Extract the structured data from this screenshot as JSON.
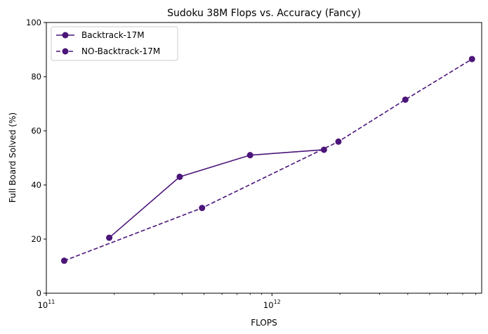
{
  "chart_data": {
    "type": "line",
    "title": "Sudoku 38M Flops vs. Accuracy (Fancy)",
    "xlabel": "FLOPS",
    "ylabel": "Full Board Solved (%)",
    "xscale": "log",
    "xlim": [
      100000000000.0,
      8500000000000.0
    ],
    "ylim": [
      0,
      100
    ],
    "x_ticks": [
      {
        "value": 100000000000.0,
        "base": "10",
        "exp": "11"
      },
      {
        "value": 1000000000000.0,
        "base": "10",
        "exp": "12"
      }
    ],
    "y_ticks": [
      0,
      20,
      40,
      60,
      80,
      100
    ],
    "grid": false,
    "legend_position": "upper-left",
    "series": [
      {
        "name": "Backtrack-17M",
        "style": "solid",
        "color": "#4b1579",
        "x": [
          190000000000.0,
          390000000000.0,
          800000000000.0,
          1700000000000.0
        ],
        "y": [
          20.5,
          43,
          51,
          53
        ]
      },
      {
        "name": "NO-Backtrack-17M",
        "style": "dashed",
        "color": "#4b1579",
        "x": [
          120000000000.0,
          490000000000.0,
          1970000000000.0,
          3900000000000.0,
          7700000000000.0
        ],
        "y": [
          12,
          31.5,
          56,
          71.5,
          86.5
        ]
      }
    ]
  }
}
